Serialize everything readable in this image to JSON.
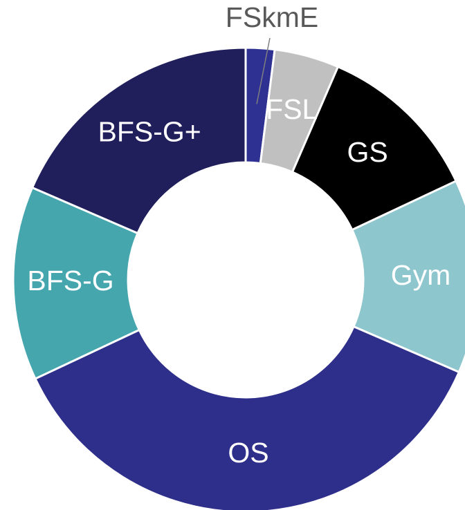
{
  "chart_data": {
    "type": "donut",
    "categories": [
      "FSkmE",
      "FSL",
      "GS",
      "Gym",
      "OS",
      "BFS-G",
      "BFS-G+"
    ],
    "values": [
      2,
      4.5,
      11.5,
      13.5,
      36.5,
      13.5,
      18.5
    ],
    "colors": [
      "#2e3192",
      "#c0c0c0",
      "#000000",
      "#8dc7cd",
      "#2e2e8b",
      "#46a6ae",
      "#201f5c"
    ]
  }
}
